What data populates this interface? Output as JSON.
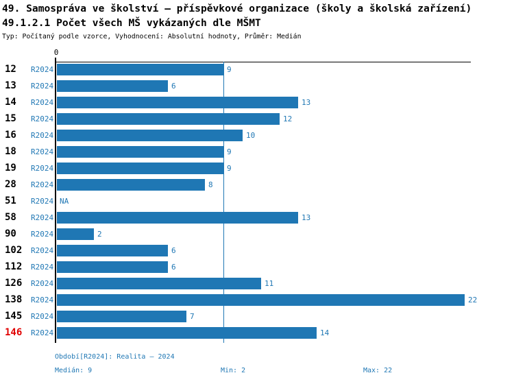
{
  "header": {
    "title": "49. Samospráva ve školství – příspěvkové organizace (školy a školská zařízení)",
    "subtitle": "49.1.2.1 Počet všech MŠ vykázaných dle MŠMT",
    "meta": "Typ: Počítaný podle vzorce, Vyhodnocení: Absolutní hodnoty, Průměr: Medián"
  },
  "colors": {
    "bar": "#1f77b4",
    "blue_text": "#1f77b4",
    "highlight_red": "#e00000",
    "axis": "#000000"
  },
  "chart_data": {
    "type": "bar",
    "orientation": "horizontal",
    "title": "49.1.2.1 Počet všech MŠ vykázaných dle MŠMT",
    "zero_label": "0",
    "x_min": 0,
    "x_max": 22,
    "median_value": 9,
    "median_line": true,
    "categories": [
      "12",
      "13",
      "14",
      "15",
      "16",
      "18",
      "19",
      "28",
      "51",
      "58",
      "90",
      "102",
      "112",
      "126",
      "138",
      "145",
      "146"
    ],
    "values": [
      9,
      6,
      13,
      12,
      10,
      9,
      9,
      8,
      null,
      13,
      2,
      6,
      6,
      11,
      22,
      7,
      14
    ],
    "rows": [
      {
        "id": "12",
        "period": "R2024",
        "value": 9,
        "label": "9",
        "highlight": false
      },
      {
        "id": "13",
        "period": "R2024",
        "value": 6,
        "label": "6",
        "highlight": false
      },
      {
        "id": "14",
        "period": "R2024",
        "value": 13,
        "label": "13",
        "highlight": false
      },
      {
        "id": "15",
        "period": "R2024",
        "value": 12,
        "label": "12",
        "highlight": false
      },
      {
        "id": "16",
        "period": "R2024",
        "value": 10,
        "label": "10",
        "highlight": false
      },
      {
        "id": "18",
        "period": "R2024",
        "value": 9,
        "label": "9",
        "highlight": false
      },
      {
        "id": "19",
        "period": "R2024",
        "value": 9,
        "label": "9",
        "highlight": false
      },
      {
        "id": "28",
        "period": "R2024",
        "value": 8,
        "label": "8",
        "highlight": false
      },
      {
        "id": "51",
        "period": "R2024",
        "value": null,
        "label": "NA",
        "highlight": false
      },
      {
        "id": "58",
        "period": "R2024",
        "value": 13,
        "label": "13",
        "highlight": false
      },
      {
        "id": "90",
        "period": "R2024",
        "value": 2,
        "label": "2",
        "highlight": false
      },
      {
        "id": "102",
        "period": "R2024",
        "value": 6,
        "label": "6",
        "highlight": false
      },
      {
        "id": "112",
        "period": "R2024",
        "value": 6,
        "label": "6",
        "highlight": false
      },
      {
        "id": "126",
        "period": "R2024",
        "value": 11,
        "label": "11",
        "highlight": false
      },
      {
        "id": "138",
        "period": "R2024",
        "value": 22,
        "label": "22",
        "highlight": false
      },
      {
        "id": "145",
        "period": "R2024",
        "value": 7,
        "label": "7",
        "highlight": false
      },
      {
        "id": "146",
        "period": "R2024",
        "value": 14,
        "label": "14",
        "highlight": true
      }
    ]
  },
  "footer": {
    "period_line": "Období[R2024]: Realita – 2024",
    "median": "Medián: 9",
    "min": "Min: 2",
    "max": "Max: 22"
  }
}
